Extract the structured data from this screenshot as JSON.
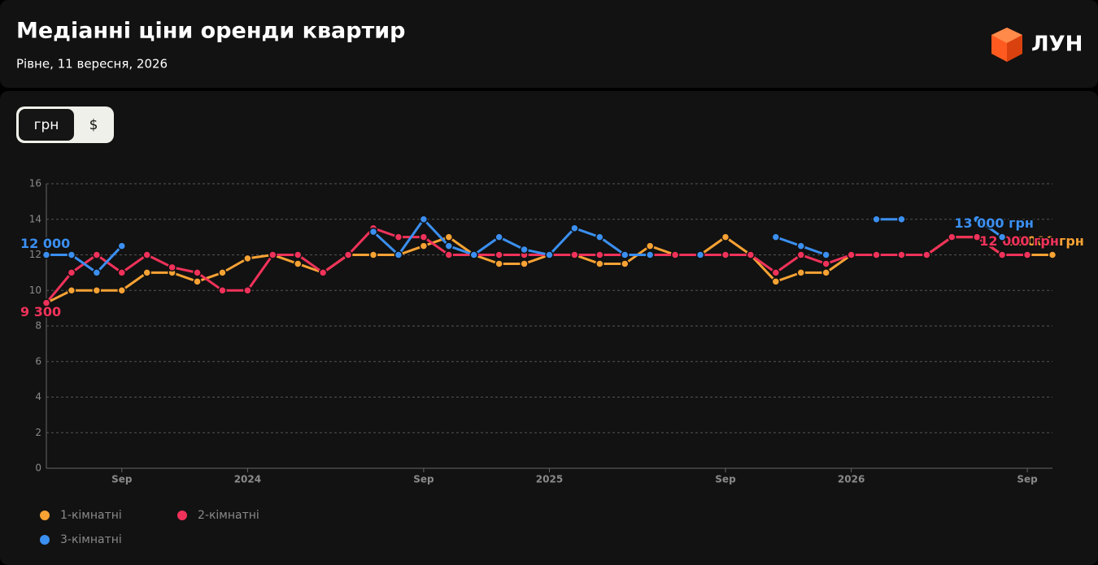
{
  "header": {
    "title": "Медіанні ціни оренди квартир",
    "subtitle": "Рівне, 11 вересня, 2026",
    "logo": "ЛУН"
  },
  "toggle": {
    "options": [
      "грн",
      "$"
    ]
  },
  "chart_data": {
    "type": "line",
    "categories": [
      null,
      null,
      null,
      "Sep",
      null,
      null,
      null,
      null,
      "2024",
      null,
      null,
      null,
      null,
      null,
      null,
      "Sep",
      null,
      null,
      null,
      null,
      "2025",
      null,
      null,
      null,
      null,
      null,
      null,
      "Sep",
      null,
      null,
      null,
      null,
      "2026",
      null,
      null,
      null,
      null,
      null,
      null,
      "Sep",
      null
    ],
    "ylim": [
      0,
      16
    ],
    "yticks": [
      0,
      2,
      4,
      6,
      8,
      10,
      12,
      14,
      16
    ],
    "grid": true,
    "series": [
      {
        "name": "1-кімнатні",
        "color": "#f7a234",
        "values": [
          9.3,
          10,
          10,
          10,
          11,
          11,
          10.5,
          11,
          11.8,
          12,
          11.5,
          11,
          12,
          12,
          12,
          12.5,
          13,
          12,
          11.5,
          11.5,
          12,
          12,
          11.5,
          11.5,
          12.5,
          12,
          12,
          13,
          12,
          10.5,
          11,
          11,
          12,
          12,
          12,
          12,
          13,
          13,
          12,
          12,
          12
        ],
        "value_labels": [
          null,
          null,
          null,
          null,
          null,
          null,
          null,
          null,
          null,
          null,
          null,
          null,
          null,
          null,
          null,
          null,
          null,
          null,
          null,
          null,
          null,
          null,
          null,
          null,
          null,
          null,
          null,
          null,
          null,
          null,
          null,
          null,
          null,
          null,
          null,
          null,
          null,
          null,
          null,
          null,
          "12 000 грн"
        ]
      },
      {
        "name": "2-кімнатні",
        "color": "#f0325a",
        "values": [
          9.3,
          11,
          12,
          11,
          12,
          11.3,
          11,
          10,
          10,
          12,
          12,
          11,
          12,
          13.5,
          13,
          13,
          12,
          12,
          12,
          12,
          12,
          12,
          12,
          12,
          12,
          12,
          12,
          12,
          12,
          11,
          12,
          11.5,
          12,
          12,
          12,
          12,
          13,
          13,
          12,
          12,
          null
        ],
        "value_labels": [
          "9 300",
          null,
          null,
          null,
          null,
          null,
          null,
          null,
          null,
          null,
          null,
          null,
          null,
          null,
          null,
          null,
          null,
          null,
          null,
          null,
          null,
          null,
          null,
          null,
          null,
          null,
          null,
          null,
          null,
          null,
          null,
          null,
          null,
          null,
          null,
          null,
          null,
          null,
          null,
          "12 000 грн",
          null
        ]
      },
      {
        "name": "3-кімнатні",
        "color": "#3b8ff0",
        "values": [
          12,
          12,
          11,
          12.5,
          null,
          null,
          null,
          null,
          null,
          null,
          null,
          null,
          null,
          13.3,
          12,
          14,
          12.5,
          12,
          13,
          12.3,
          12,
          13.5,
          13,
          12,
          12,
          null,
          12,
          null,
          null,
          13,
          12.5,
          12,
          null,
          14,
          14,
          null,
          null,
          14,
          13,
          null,
          null
        ],
        "value_labels": [
          "12 000",
          null,
          null,
          null,
          null,
          null,
          null,
          null,
          null,
          null,
          null,
          null,
          null,
          null,
          null,
          null,
          null,
          null,
          null,
          null,
          null,
          null,
          null,
          null,
          null,
          null,
          null,
          null,
          null,
          null,
          null,
          null,
          null,
          null,
          null,
          null,
          null,
          null,
          "13 000 грн",
          null,
          null
        ]
      }
    ]
  }
}
